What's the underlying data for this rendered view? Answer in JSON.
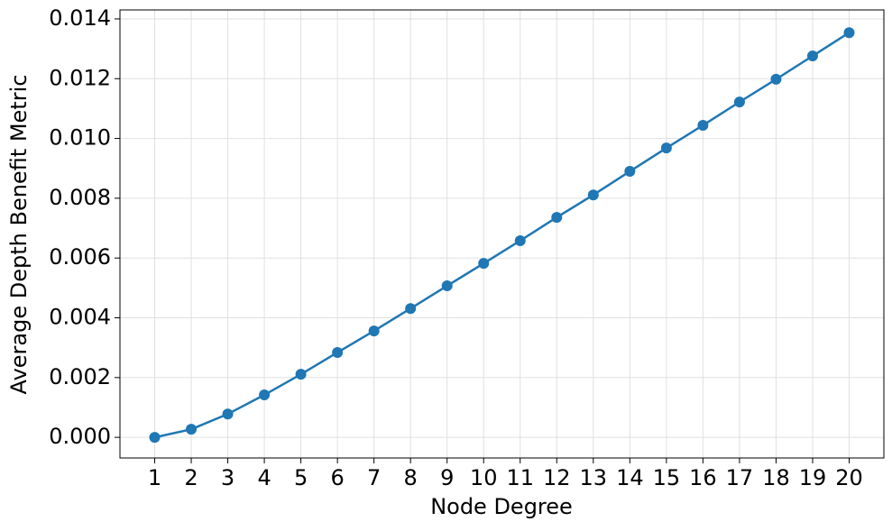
{
  "chart_data": {
    "type": "line",
    "x_label": "Node Degree",
    "y_label": "Average Depth Benefit Metric",
    "x": [
      1,
      2,
      3,
      4,
      5,
      6,
      7,
      8,
      9,
      10,
      11,
      12,
      13,
      14,
      15,
      16,
      17,
      18,
      19,
      20
    ],
    "series": [
      {
        "color": "#1f77b4",
        "values": [
          0,
          0.00027,
          0.00078,
          0.00142,
          0.00211,
          0.00284,
          0.00356,
          0.00431,
          0.00507,
          0.00582,
          0.00658,
          0.00736,
          0.00811,
          0.0089,
          0.00968,
          0.01044,
          0.01122,
          0.01198,
          0.01276,
          0.01354
        ]
      }
    ],
    "xlim": [
      0.05,
      20.95
    ],
    "xticks": [
      1,
      2,
      3,
      4,
      5,
      6,
      7,
      8,
      9,
      10,
      11,
      12,
      13,
      14,
      15,
      16,
      17,
      18,
      19,
      20
    ],
    "ylim": [
      -0.00069,
      0.0143
    ],
    "yticks": [
      {
        "value": 0,
        "label": "0.000"
      },
      {
        "value": 0.002,
        "label": "0.002"
      },
      {
        "value": 0.004,
        "label": "0.004"
      },
      {
        "value": 0.006,
        "label": "0.006"
      },
      {
        "value": 0.008,
        "label": "0.008"
      },
      {
        "value": 0.01,
        "label": "0.010"
      },
      {
        "value": 0.012,
        "label": "0.012"
      },
      {
        "value": 0.014,
        "label": "0.014"
      }
    ],
    "grid": true
  }
}
